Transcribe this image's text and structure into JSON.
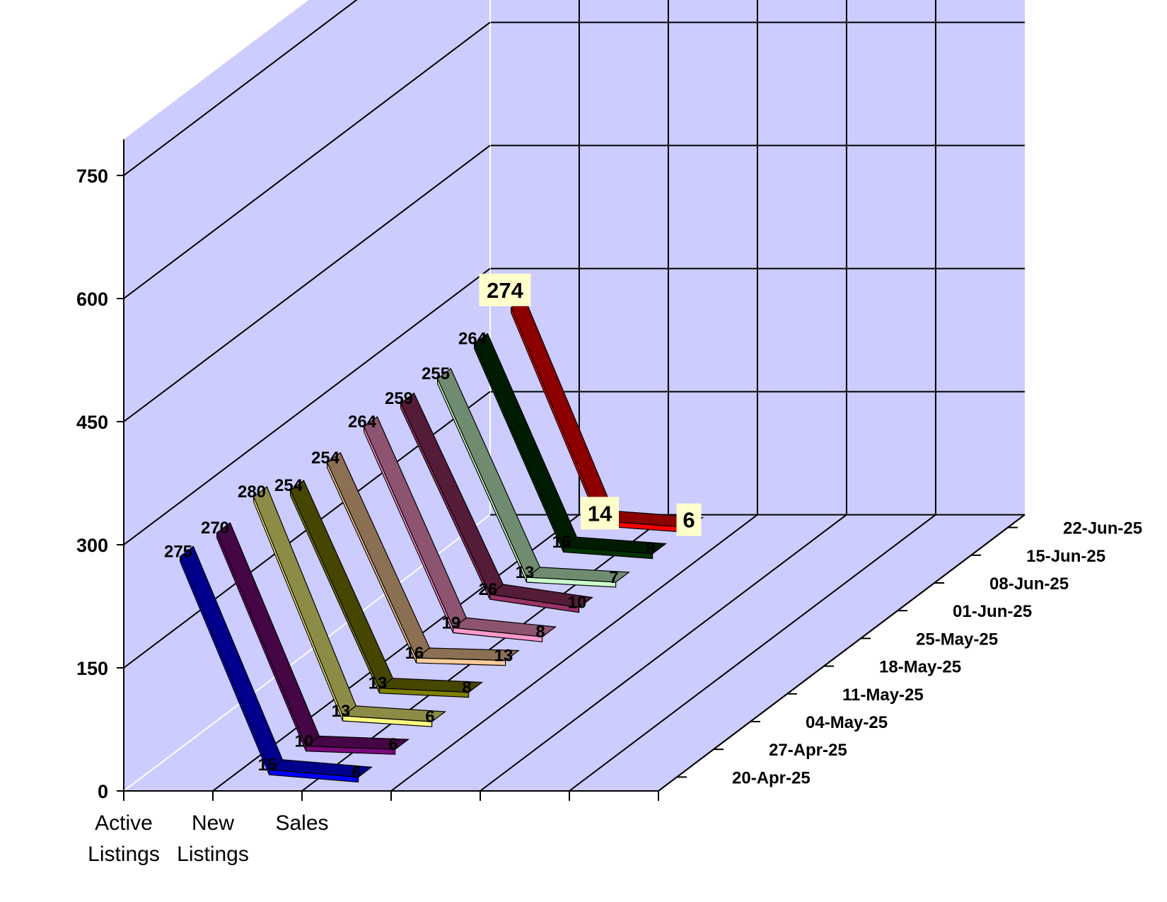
{
  "chart_data": {
    "type": "line",
    "title": "",
    "xlabel": "",
    "ylabel": "",
    "ylim": [
      0,
      750
    ],
    "yticks": [
      "0",
      "150",
      "300",
      "450",
      "600",
      "750"
    ],
    "categories": [
      "Active\nListings",
      "New\nListings",
      "Sales"
    ],
    "grid": true,
    "series": [
      {
        "name": "20-Apr-25",
        "color": "#0000ff",
        "values": [
          275,
          15,
          6
        ],
        "labels": [
          "275",
          "15",
          "6"
        ]
      },
      {
        "name": "27-Apr-25",
        "color": "#7b0a7b",
        "values": [
          270,
          10,
          6
        ],
        "labels": [
          "270",
          "10",
          "6"
        ]
      },
      {
        "name": "04-May-25",
        "color": "#ffff80",
        "values": [
          280,
          13,
          6
        ],
        "labels": [
          "280",
          "13",
          "6"
        ]
      },
      {
        "name": "11-May-25",
        "color": "#808000",
        "values": [
          254,
          13,
          8
        ],
        "labels": [
          "254",
          "13",
          "8"
        ]
      },
      {
        "name": "18-May-25",
        "color": "#ffcc99",
        "values": [
          254,
          16,
          13
        ],
        "labels": [
          "254",
          "16",
          "13"
        ]
      },
      {
        "name": "25-May-25",
        "color": "#ff99cc",
        "values": [
          264,
          19,
          8
        ],
        "labels": [
          "264",
          "19",
          "8"
        ]
      },
      {
        "name": "01-Jun-25",
        "color": "#993366",
        "values": [
          259,
          26,
          10
        ],
        "labels": [
          "259",
          "26",
          "10"
        ]
      },
      {
        "name": "08-Jun-25",
        "color": "#ccffcc",
        "values": [
          255,
          13,
          7
        ],
        "labels": [
          "255",
          "13",
          "7"
        ]
      },
      {
        "name": "15-Jun-25",
        "color": "#003300",
        "values": [
          264,
          16,
          8
        ],
        "labels": [
          "264",
          "16",
          "8"
        ]
      },
      {
        "name": "22-Jun-25",
        "color": "#ff0000",
        "values": [
          274,
          14,
          6
        ],
        "labels": [
          "274",
          "14",
          "6"
        ]
      }
    ]
  }
}
